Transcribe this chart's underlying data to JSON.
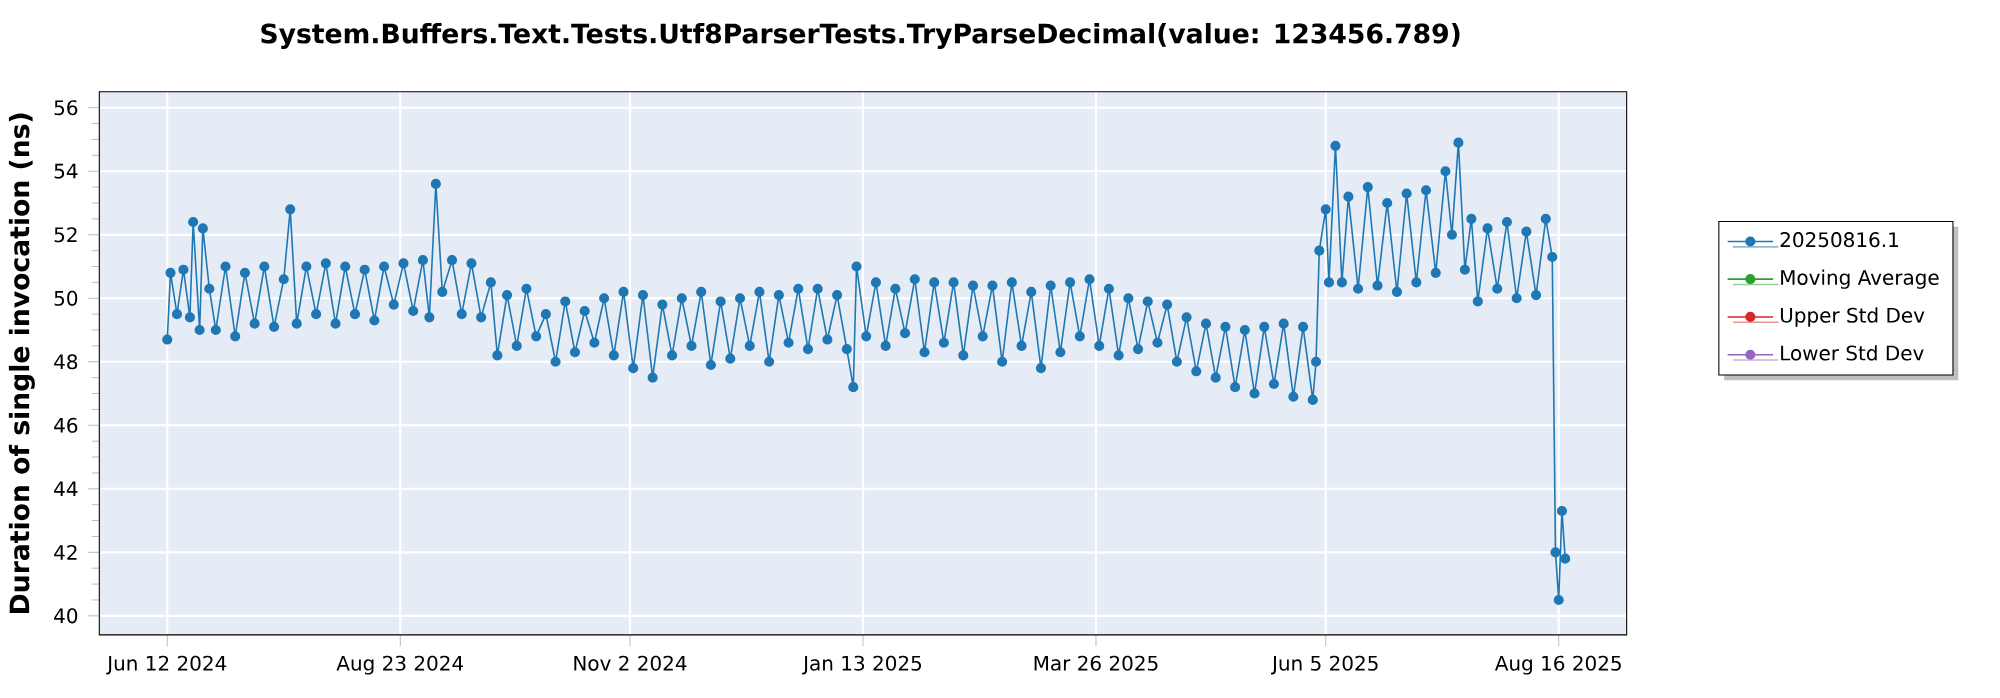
{
  "chart_data": {
    "type": "line",
    "title": "System.Buffers.Text.Tests.Utf8ParserTests.TryParseDecimal(value: 123456.789)",
    "ylabel": "Duration of single invocation (ns)",
    "x": [
      "2024-06-12",
      "2024-06-13",
      "2024-06-15",
      "2024-06-17",
      "2024-06-19",
      "2024-06-20",
      "2024-06-22",
      "2024-06-23",
      "2024-06-25",
      "2024-06-27",
      "2024-06-30",
      "2024-07-03",
      "2024-07-06",
      "2024-07-09",
      "2024-07-12",
      "2024-07-15",
      "2024-07-18",
      "2024-07-20",
      "2024-07-22",
      "2024-07-25",
      "2024-07-28",
      "2024-07-31",
      "2024-08-03",
      "2024-08-06",
      "2024-08-09",
      "2024-08-12",
      "2024-08-15",
      "2024-08-18",
      "2024-08-21",
      "2024-08-24",
      "2024-08-27",
      "2024-08-30",
      "2024-09-01",
      "2024-09-03",
      "2024-09-05",
      "2024-09-08",
      "2024-09-11",
      "2024-09-14",
      "2024-09-17",
      "2024-09-20",
      "2024-09-22",
      "2024-09-25",
      "2024-09-28",
      "2024-10-01",
      "2024-10-04",
      "2024-10-07",
      "2024-10-10",
      "2024-10-13",
      "2024-10-16",
      "2024-10-19",
      "2024-10-22",
      "2024-10-25",
      "2024-10-28",
      "2024-10-31",
      "2024-11-03",
      "2024-11-06",
      "2024-11-09",
      "2024-11-12",
      "2024-11-15",
      "2024-11-18",
      "2024-11-21",
      "2024-11-24",
      "2024-11-27",
      "2024-11-30",
      "2024-12-03",
      "2024-12-06",
      "2024-12-09",
      "2024-12-12",
      "2024-12-15",
      "2024-12-18",
      "2024-12-21",
      "2024-12-24",
      "2024-12-27",
      "2024-12-30",
      "2025-01-02",
      "2025-01-05",
      "2025-01-08",
      "2025-01-10",
      "2025-01-11",
      "2025-01-14",
      "2025-01-17",
      "2025-01-20",
      "2025-01-23",
      "2025-01-26",
      "2025-01-29",
      "2025-02-01",
      "2025-02-04",
      "2025-02-07",
      "2025-02-10",
      "2025-02-13",
      "2025-02-16",
      "2025-02-19",
      "2025-02-22",
      "2025-02-25",
      "2025-02-28",
      "2025-03-03",
      "2025-03-06",
      "2025-03-09",
      "2025-03-12",
      "2025-03-15",
      "2025-03-18",
      "2025-03-21",
      "2025-03-24",
      "2025-03-27",
      "2025-03-30",
      "2025-04-02",
      "2025-04-05",
      "2025-04-08",
      "2025-04-11",
      "2025-04-14",
      "2025-04-17",
      "2025-04-20",
      "2025-04-23",
      "2025-04-26",
      "2025-04-29",
      "2025-05-02",
      "2025-05-05",
      "2025-05-08",
      "2025-05-11",
      "2025-05-14",
      "2025-05-17",
      "2025-05-20",
      "2025-05-23",
      "2025-05-26",
      "2025-05-29",
      "2025-06-01",
      "2025-06-02",
      "2025-06-03",
      "2025-06-05",
      "2025-06-06",
      "2025-06-08",
      "2025-06-10",
      "2025-06-12",
      "2025-06-15",
      "2025-06-18",
      "2025-06-21",
      "2025-06-24",
      "2025-06-27",
      "2025-06-30",
      "2025-07-03",
      "2025-07-06",
      "2025-07-09",
      "2025-07-12",
      "2025-07-14",
      "2025-07-16",
      "2025-07-18",
      "2025-07-20",
      "2025-07-22",
      "2025-07-25",
      "2025-07-28",
      "2025-07-31",
      "2025-08-03",
      "2025-08-06",
      "2025-08-09",
      "2025-08-12",
      "2025-08-14",
      "2025-08-15",
      "2025-08-16",
      "2025-08-17",
      "2025-08-18"
    ],
    "series": [
      {
        "name": "20250816.1",
        "color": "#1f77b4",
        "values": [
          48.7,
          50.8,
          49.5,
          50.9,
          49.4,
          52.4,
          49.0,
          52.2,
          50.3,
          49.0,
          51.0,
          48.8,
          50.8,
          49.2,
          51.0,
          49.1,
          50.6,
          52.8,
          49.2,
          51.0,
          49.5,
          51.1,
          49.2,
          51.0,
          49.5,
          50.9,
          49.3,
          51.0,
          49.8,
          51.1,
          49.6,
          51.2,
          49.4,
          53.6,
          50.2,
          51.2,
          49.5,
          51.1,
          49.4,
          50.5,
          48.2,
          50.1,
          48.5,
          50.3,
          48.8,
          49.5,
          48.0,
          49.9,
          48.3,
          49.6,
          48.6,
          50.0,
          48.2,
          50.2,
          47.8,
          50.1,
          47.5,
          49.8,
          48.2,
          50.0,
          48.5,
          50.2,
          47.9,
          49.9,
          48.1,
          50.0,
          48.5,
          50.2,
          48.0,
          50.1,
          48.6,
          50.3,
          48.4,
          50.3,
          48.7,
          50.1,
          48.4,
          47.2,
          51.0,
          48.8,
          50.5,
          48.5,
          50.3,
          48.9,
          50.6,
          48.3,
          50.5,
          48.6,
          50.5,
          48.2,
          50.4,
          48.8,
          50.4,
          48.0,
          50.5,
          48.5,
          50.2,
          47.8,
          50.4,
          48.3,
          50.5,
          48.8,
          50.6,
          48.5,
          50.3,
          48.2,
          50.0,
          48.4,
          49.9,
          48.6,
          49.8,
          48.0,
          49.4,
          47.7,
          49.2,
          47.5,
          49.1,
          47.2,
          49.0,
          47.0,
          49.1,
          47.3,
          49.2,
          46.9,
          49.1,
          46.8,
          48.0,
          51.5,
          52.8,
          50.5,
          54.8,
          50.5,
          53.2,
          50.3,
          53.5,
          50.4,
          53.0,
          50.2,
          53.3,
          50.5,
          53.4,
          50.8,
          54.0,
          52.0,
          54.9,
          50.9,
          52.5,
          49.9,
          52.2,
          50.3,
          52.4,
          50.0,
          52.1,
          50.1,
          52.5,
          51.3,
          42.0,
          40.5,
          43.3,
          41.8
        ]
      },
      {
        "name": "Moving Average",
        "color": "#2ca02c",
        "values": [
          null,
          null,
          null,
          null,
          null,
          null,
          null,
          null,
          null,
          null,
          null,
          null,
          null,
          null,
          null,
          null,
          null,
          null,
          null,
          null,
          null,
          null,
          null,
          null,
          null,
          null,
          null,
          null,
          null,
          null,
          null,
          null,
          null,
          null,
          null,
          null,
          null,
          null,
          null,
          null,
          null,
          null,
          null,
          null,
          null,
          null,
          null,
          null,
          null,
          null,
          null,
          null,
          null,
          null,
          null,
          null,
          null,
          null,
          null,
          null,
          null,
          null,
          null,
          null,
          null,
          null,
          null,
          null,
          null,
          null,
          null,
          null,
          null,
          null,
          null,
          null,
          null,
          null,
          null,
          null,
          null,
          null,
          null,
          null,
          null,
          null,
          null,
          null,
          null,
          null,
          null,
          null,
          null,
          null,
          null,
          null,
          null,
          null,
          null,
          null,
          null,
          null,
          null,
          null,
          null,
          null,
          null,
          null,
          null,
          null,
          null,
          null,
          null,
          null,
          null,
          null,
          null,
          null,
          null,
          null,
          null,
          null,
          null,
          null,
          null,
          null,
          null,
          null,
          null,
          null,
          null,
          null,
          null,
          null,
          null,
          null,
          null,
          null,
          null,
          null,
          null,
          null,
          null,
          null,
          null,
          null,
          null,
          null,
          null,
          null,
          null,
          null,
          null,
          null,
          null,
          null,
          null,
          null,
          null,
          null
        ]
      },
      {
        "name": "Upper Std Dev",
        "color": "#d62728",
        "values": [
          null,
          null,
          null,
          null,
          null,
          null,
          null,
          null,
          null,
          null,
          null,
          null,
          null,
          null,
          null,
          null,
          null,
          null,
          null,
          null,
          null,
          null,
          null,
          null,
          null,
          null,
          null,
          null,
          null,
          null,
          null,
          null,
          null,
          null,
          null,
          null,
          null,
          null,
          null,
          null,
          null,
          null,
          null,
          null,
          null,
          null,
          null,
          null,
          null,
          null,
          null,
          null,
          null,
          null,
          null,
          null,
          null,
          null,
          null,
          null,
          null,
          null,
          null,
          null,
          null,
          null,
          null,
          null,
          null,
          null,
          null,
          null,
          null,
          null,
          null,
          null,
          null,
          null,
          null,
          null,
          null,
          null,
          null,
          null,
          null,
          null,
          null,
          null,
          null,
          null,
          null,
          null,
          null,
          null,
          null,
          null,
          null,
          null,
          null,
          null,
          null,
          null,
          null,
          null,
          null,
          null,
          null,
          null,
          null,
          null,
          null,
          null,
          null,
          null,
          null,
          null,
          null,
          null,
          null,
          null,
          null,
          null,
          null,
          null,
          null,
          null,
          null,
          null,
          null,
          null,
          null,
          null,
          null,
          null,
          null,
          null,
          null,
          null,
          null,
          null,
          null,
          null,
          null,
          null,
          null,
          null,
          null,
          null,
          null,
          null,
          null,
          null,
          null,
          null,
          null,
          null,
          null,
          null,
          null,
          null
        ]
      },
      {
        "name": "Lower Std Dev",
        "color": "#9467bd",
        "values": [
          null,
          null,
          null,
          null,
          null,
          null,
          null,
          null,
          null,
          null,
          null,
          null,
          null,
          null,
          null,
          null,
          null,
          null,
          null,
          null,
          null,
          null,
          null,
          null,
          null,
          null,
          null,
          null,
          null,
          null,
          null,
          null,
          null,
          null,
          null,
          null,
          null,
          null,
          null,
          null,
          null,
          null,
          null,
          null,
          null,
          null,
          null,
          null,
          null,
          null,
          null,
          null,
          null,
          null,
          null,
          null,
          null,
          null,
          null,
          null,
          null,
          null,
          null,
          null,
          null,
          null,
          null,
          null,
          null,
          null,
          null,
          null,
          null,
          null,
          null,
          null,
          null,
          null,
          null,
          null,
          null,
          null,
          null,
          null,
          null,
          null,
          null,
          null,
          null,
          null,
          null,
          null,
          null,
          null,
          null,
          null,
          null,
          null,
          null,
          null,
          null,
          null,
          null,
          null,
          null,
          null,
          null,
          null,
          null,
          null,
          null,
          null,
          null,
          null,
          null,
          null,
          null,
          null,
          null,
          null,
          null,
          null,
          null,
          null,
          null,
          null,
          null,
          null,
          null,
          null,
          null,
          null,
          null,
          null,
          null,
          null,
          null,
          null,
          null,
          null,
          null,
          null,
          null,
          null,
          null,
          null,
          null,
          null,
          null,
          null,
          null,
          null,
          null,
          null,
          null,
          null,
          null,
          null,
          null,
          null
        ]
      }
    ],
    "xlim": [
      "2024-05-22",
      "2025-09-06"
    ],
    "xticks": [
      {
        "value": "2024-06-12",
        "label": "Jun 12 2024"
      },
      {
        "value": "2024-08-23",
        "label": "Aug 23 2024"
      },
      {
        "value": "2024-11-02",
        "label": "Nov 2 2024"
      },
      {
        "value": "2025-01-13",
        "label": "Jan 13 2025"
      },
      {
        "value": "2025-03-26",
        "label": "Mar 26 2025"
      },
      {
        "value": "2025-06-05",
        "label": "Jun 5 2025"
      },
      {
        "value": "2025-08-16",
        "label": "Aug 16 2025"
      }
    ],
    "ylim": [
      39.4,
      56.5
    ],
    "yticks": [
      40,
      42,
      44,
      46,
      48,
      50,
      52,
      54,
      56
    ],
    "grid": true,
    "legend": "right",
    "marker": "circle",
    "line_style": "solid"
  }
}
